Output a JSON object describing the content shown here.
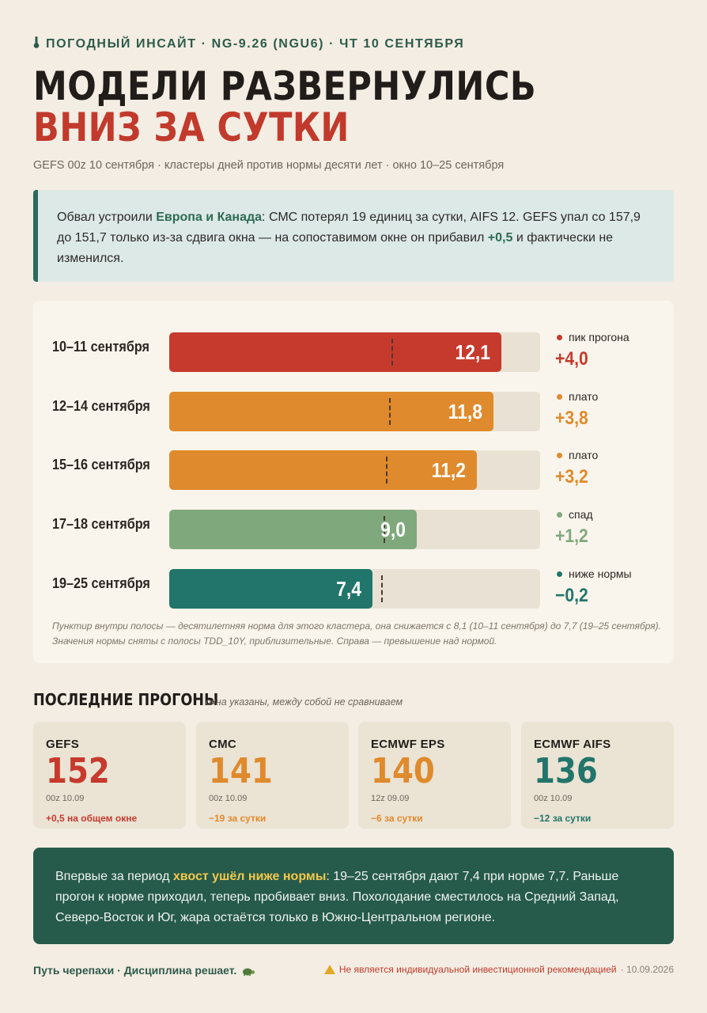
{
  "header": {
    "kicker_icon": "thermometer-icon",
    "kicker": "ПОГОДНЫЙ ИНСАЙТ · NG-9.26 (NGU6) · ЧТ 10 СЕНТЯБРЯ",
    "title_line1": "МОДЕЛИ РАЗВЕРНУЛИСЬ",
    "title_line2": "ВНИЗ ЗА СУТКИ",
    "subtitle": "GEFS 00z 10 сентября · кластеры дней против нормы десяти лет · окно 10–25 сентября"
  },
  "callout": {
    "part1": "Обвал устроили ",
    "highlight1": "Европа и Канада",
    "part2": ": СМС потерял 19 единиц за сутки, AIFS 12. GEFS упал со 157,9 до 151,7 только из-за сдвига окна — на сопоставимом окне он прибавил ",
    "highlight2": "+0,5",
    "part3": " и фактически не изменился."
  },
  "colors": {
    "red": "#c63a2d",
    "orange": "#df8a2c",
    "green": "#7fa97d",
    "teal": "#22756b",
    "dark_green": "#265a4a",
    "accent_yellow": "#f2c94c"
  },
  "chart_data": {
    "type": "bar",
    "orientation": "horizontal",
    "categories": [
      "10–11 сентября",
      "12–14 сентября",
      "15–16 сентября",
      "17–18 сентября",
      "19–25 сентября"
    ],
    "values": [
      12.1,
      11.8,
      11.2,
      9.0,
      7.4
    ],
    "value_labels": [
      "12,1",
      "11,8",
      "11,2",
      "9,0",
      "7,4"
    ],
    "norm_values": [
      8.1,
      8.0,
      7.9,
      7.8,
      7.7
    ],
    "xlim": [
      0,
      13.5
    ],
    "statuses": [
      "пик прогона",
      "плато",
      "плато",
      "спад",
      "ниже нормы"
    ],
    "deviations": [
      "+4,0",
      "+3,8",
      "+3,2",
      "+1,2",
      "−0,2"
    ],
    "bar_colors": [
      "#c63a2d",
      "#df8a2c",
      "#df8a2c",
      "#7fa97d",
      "#22756b"
    ],
    "note": "Пунктир внутри полосы — десятилетняя норма для этого кластера, она снижается с 8,1 (10–11 сентября) до 7,7 (19–25 сентября). Значения нормы сняты с полосы TDD_10Y, приблизительные. Справа — превышение над нормой."
  },
  "runs": {
    "title": "ПОСЛЕДНИЕ ПРОГОНЫ",
    "subtitle": "окна указаны, между собой не сравниваем",
    "items": [
      {
        "name": "GEFS",
        "value": "152",
        "time": "00z 10.09",
        "change": "+0,5 на общем окне",
        "color": "#c63a2d"
      },
      {
        "name": "CMC",
        "value": "141",
        "time": "00z 10.09",
        "change": "−19 за сутки",
        "color": "#df8a2c"
      },
      {
        "name": "ECMWF EPS",
        "value": "140",
        "time": "12z 09.09",
        "change": "−6 за сутки",
        "color": "#df8a2c"
      },
      {
        "name": "ECMWF AIFS",
        "value": "136",
        "time": "00z 10.09",
        "change": "−12 за сутки",
        "color": "#22756b"
      }
    ]
  },
  "bottom": {
    "part1": "Впервые за период ",
    "highlight": "хвост ушёл ниже нормы",
    "part2": ": 19–25 сентября дают 7,4 при норме 7,7. Раньше прогон к норме приходил, теперь пробивает вниз. Похолодание сместилось на Средний Запад, Северо-Восток и Юг, жара остаётся только в Южно-Центральном регионе."
  },
  "footer": {
    "left": "Путь черепахи · Дисциплина решает.",
    "left_icon": "turtle-icon",
    "right_icon": "warning-icon",
    "right": "Не является индивидуальной инвестиционной рекомендацией",
    "date": " · 10.09.2026"
  }
}
